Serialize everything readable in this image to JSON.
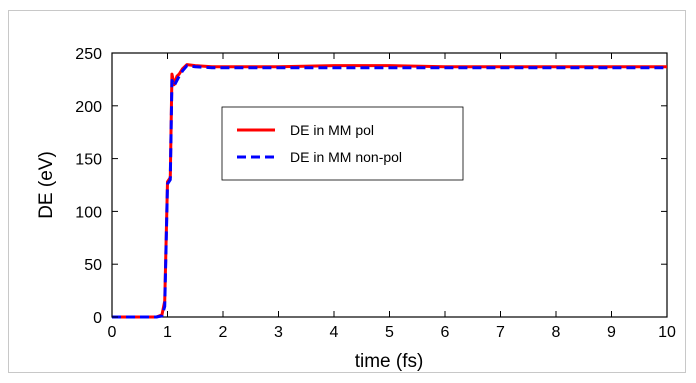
{
  "chart_data": {
    "type": "line",
    "title": "",
    "xlabel": "time (fs)",
    "ylabel": "DE (eV)",
    "xlim": [
      0,
      10
    ],
    "ylim": [
      0,
      250
    ],
    "x_ticks": [
      0,
      1,
      2,
      3,
      4,
      5,
      6,
      7,
      8,
      9,
      10
    ],
    "y_ticks": [
      0,
      50,
      100,
      150,
      200,
      250
    ],
    "grid": false,
    "legend_position": "upper-center-left",
    "series": [
      {
        "name": "DE in MM pol",
        "color": "#ff0000",
        "style": "solid",
        "x": [
          0,
          0.8,
          0.9,
          0.95,
          1.0,
          1.05,
          1.08,
          1.12,
          1.17,
          1.21,
          1.27,
          1.35,
          1.5,
          1.8,
          2.0,
          3.0,
          4.0,
          5.0,
          6.0,
          7.0,
          8.0,
          9.0,
          10.0
        ],
        "y": [
          0,
          0,
          2,
          15,
          128,
          132,
          230,
          220,
          228,
          230,
          235,
          239,
          238,
          237,
          237,
          237,
          238,
          238,
          237,
          237,
          237,
          237,
          237
        ]
      },
      {
        "name": "DE in MM non-pol",
        "color": "#0000ff",
        "style": "dashed",
        "x": [
          0,
          0.8,
          0.9,
          0.95,
          1.0,
          1.05,
          1.08,
          1.12,
          1.17,
          1.21,
          1.27,
          1.35,
          1.5,
          1.8,
          2.0,
          3.0,
          4.0,
          5.0,
          6.0,
          7.0,
          8.0,
          9.0,
          10.0
        ],
        "y": [
          0,
          0,
          1,
          10,
          126,
          130,
          224,
          219,
          224,
          228,
          233,
          238,
          237,
          236,
          236,
          236,
          236,
          236,
          236,
          236,
          236,
          236,
          236
        ]
      }
    ]
  }
}
